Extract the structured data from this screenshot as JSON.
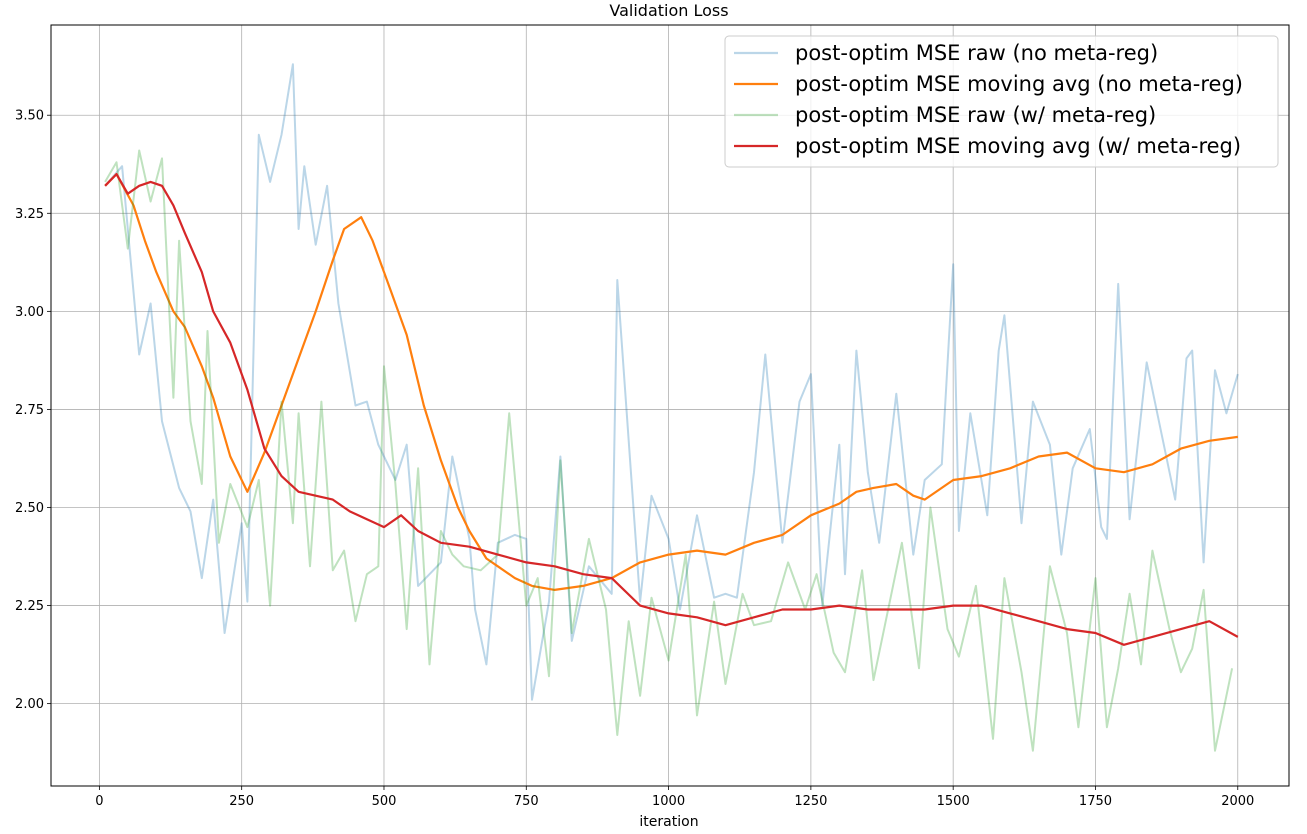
{
  "chart_data": {
    "type": "line",
    "title": "Validation Loss",
    "xlabel": "iteration",
    "ylabel": "",
    "xlim": [
      -85,
      2090
    ],
    "ylim": [
      1.79,
      3.73
    ],
    "xticks": [
      0,
      250,
      500,
      750,
      1000,
      1250,
      1500,
      1750,
      2000
    ],
    "xtick_labels": [
      "0",
      "250",
      "500",
      "750",
      "1000",
      "1250",
      "1500",
      "1750",
      "2000"
    ],
    "yticks": [
      2.0,
      2.25,
      2.5,
      2.75,
      3.0,
      3.25,
      3.5
    ],
    "ytick_labels": [
      "2.00",
      "2.25",
      "2.50",
      "2.75",
      "3.00",
      "3.25",
      "3.50"
    ],
    "grid": true,
    "legend_position": "top-right",
    "series": [
      {
        "name": "post-optim MSE raw (no meta-reg)",
        "color": "#1f77b4",
        "opacity": 0.3,
        "x": [
          10,
          40,
          70,
          90,
          110,
          140,
          160,
          180,
          200,
          220,
          250,
          260,
          280,
          300,
          320,
          340,
          350,
          360,
          380,
          400,
          420,
          450,
          470,
          490,
          520,
          540,
          560,
          600,
          620,
          650,
          660,
          680,
          700,
          730,
          750,
          760,
          790,
          810,
          830,
          860,
          900,
          910,
          950,
          970,
          1000,
          1020,
          1050,
          1080,
          1100,
          1120,
          1150,
          1170,
          1200,
          1230,
          1250,
          1270,
          1300,
          1310,
          1330,
          1350,
          1370,
          1400,
          1430,
          1450,
          1480,
          1500,
          1510,
          1530,
          1560,
          1580,
          1590,
          1620,
          1640,
          1670,
          1690,
          1710,
          1740,
          1760,
          1770,
          1790,
          1810,
          1840,
          1860,
          1870,
          1890,
          1910,
          1920,
          1940,
          1960,
          1980,
          2000
        ],
        "y": [
          3.32,
          3.37,
          2.89,
          3.02,
          2.72,
          2.55,
          2.49,
          2.32,
          2.52,
          2.18,
          2.46,
          2.26,
          3.45,
          3.33,
          3.45,
          3.63,
          3.21,
          3.37,
          3.17,
          3.32,
          3.02,
          2.76,
          2.77,
          2.66,
          2.57,
          2.66,
          2.3,
          2.36,
          2.63,
          2.42,
          2.24,
          2.1,
          2.41,
          2.43,
          2.42,
          2.01,
          2.26,
          2.63,
          2.16,
          2.35,
          2.28,
          3.08,
          2.26,
          2.53,
          2.42,
          2.24,
          2.48,
          2.27,
          2.28,
          2.27,
          2.59,
          2.89,
          2.41,
          2.77,
          2.84,
          2.25,
          2.66,
          2.33,
          2.9,
          2.59,
          2.41,
          2.79,
          2.38,
          2.57,
          2.61,
          3.12,
          2.44,
          2.74,
          2.48,
          2.9,
          2.99,
          2.46,
          2.77,
          2.66,
          2.38,
          2.6,
          2.7,
          2.45,
          2.42,
          3.07,
          2.47,
          2.87,
          2.73,
          2.66,
          2.52,
          2.88,
          2.9,
          2.36,
          2.85,
          2.74,
          2.84
        ]
      },
      {
        "name": "post-optim MSE moving avg (no meta-reg)",
        "color": "#ff7f0e",
        "opacity": 1,
        "x": [
          10,
          30,
          60,
          80,
          100,
          130,
          150,
          180,
          200,
          230,
          260,
          290,
          320,
          350,
          380,
          410,
          430,
          460,
          480,
          510,
          540,
          570,
          600,
          630,
          650,
          680,
          700,
          730,
          760,
          800,
          850,
          900,
          950,
          1000,
          1050,
          1100,
          1150,
          1200,
          1250,
          1300,
          1330,
          1360,
          1400,
          1430,
          1450,
          1500,
          1550,
          1600,
          1650,
          1700,
          1750,
          1800,
          1850,
          1900,
          1950,
          2000
        ],
        "y": [
          3.32,
          3.35,
          3.27,
          3.18,
          3.1,
          3.0,
          2.96,
          2.86,
          2.78,
          2.63,
          2.54,
          2.64,
          2.76,
          2.88,
          3.0,
          3.13,
          3.21,
          3.24,
          3.18,
          3.06,
          2.94,
          2.76,
          2.62,
          2.5,
          2.44,
          2.37,
          2.35,
          2.32,
          2.3,
          2.29,
          2.3,
          2.32,
          2.36,
          2.38,
          2.39,
          2.38,
          2.41,
          2.43,
          2.48,
          2.51,
          2.54,
          2.55,
          2.56,
          2.53,
          2.52,
          2.57,
          2.58,
          2.6,
          2.63,
          2.64,
          2.6,
          2.59,
          2.61,
          2.65,
          2.67,
          2.68
        ]
      },
      {
        "name": "post-optim MSE raw (w/ meta-reg)",
        "color": "#2ca02c",
        "opacity": 0.3,
        "x": [
          10,
          30,
          50,
          70,
          90,
          110,
          130,
          140,
          160,
          180,
          190,
          210,
          230,
          260,
          280,
          300,
          320,
          340,
          350,
          370,
          390,
          410,
          430,
          450,
          470,
          490,
          500,
          520,
          540,
          560,
          580,
          600,
          620,
          640,
          670,
          700,
          720,
          750,
          770,
          790,
          810,
          830,
          860,
          890,
          910,
          930,
          950,
          970,
          1000,
          1030,
          1050,
          1080,
          1100,
          1130,
          1150,
          1180,
          1210,
          1240,
          1260,
          1290,
          1310,
          1340,
          1360,
          1390,
          1410,
          1440,
          1460,
          1490,
          1510,
          1540,
          1570,
          1590,
          1620,
          1640,
          1670,
          1700,
          1720,
          1750,
          1770,
          1790,
          1810,
          1830,
          1850,
          1880,
          1900,
          1920,
          1940,
          1960,
          1990
        ],
        "y": [
          3.33,
          3.38,
          3.16,
          3.41,
          3.28,
          3.39,
          2.78,
          3.18,
          2.72,
          2.56,
          2.95,
          2.41,
          2.56,
          2.45,
          2.57,
          2.25,
          2.77,
          2.46,
          2.74,
          2.35,
          2.77,
          2.34,
          2.39,
          2.21,
          2.33,
          2.35,
          2.86,
          2.56,
          2.19,
          2.6,
          2.1,
          2.44,
          2.38,
          2.35,
          2.34,
          2.38,
          2.74,
          2.25,
          2.32,
          2.07,
          2.62,
          2.18,
          2.42,
          2.24,
          1.92,
          2.21,
          2.02,
          2.27,
          2.11,
          2.38,
          1.97,
          2.26,
          2.05,
          2.28,
          2.2,
          2.21,
          2.36,
          2.24,
          2.33,
          2.13,
          2.08,
          2.34,
          2.06,
          2.27,
          2.41,
          2.09,
          2.5,
          2.19,
          2.12,
          2.3,
          1.91,
          2.32,
          2.08,
          1.88,
          2.35,
          2.18,
          1.94,
          2.32,
          1.94,
          2.09,
          2.28,
          2.1,
          2.39,
          2.19,
          2.08,
          2.14,
          2.29,
          1.88,
          2.09
        ]
      },
      {
        "name": "post-optim MSE moving avg (w/ meta-reg)",
        "color": "#d62728",
        "opacity": 1,
        "x": [
          10,
          30,
          50,
          70,
          90,
          110,
          130,
          150,
          180,
          200,
          230,
          260,
          290,
          320,
          350,
          380,
          410,
          440,
          470,
          500,
          530,
          560,
          600,
          650,
          700,
          750,
          800,
          850,
          900,
          950,
          1000,
          1050,
          1100,
          1150,
          1200,
          1250,
          1300,
          1350,
          1400,
          1450,
          1500,
          1550,
          1600,
          1650,
          1700,
          1750,
          1800,
          1850,
          1900,
          1950,
          2000
        ],
        "y": [
          3.32,
          3.35,
          3.3,
          3.32,
          3.33,
          3.32,
          3.27,
          3.2,
          3.1,
          3.0,
          2.92,
          2.8,
          2.65,
          2.58,
          2.54,
          2.53,
          2.52,
          2.49,
          2.47,
          2.45,
          2.48,
          2.44,
          2.41,
          2.4,
          2.38,
          2.36,
          2.35,
          2.33,
          2.32,
          2.25,
          2.23,
          2.22,
          2.2,
          2.22,
          2.24,
          2.24,
          2.25,
          2.24,
          2.24,
          2.24,
          2.25,
          2.25,
          2.23,
          2.21,
          2.19,
          2.18,
          2.15,
          2.17,
          2.19,
          2.21,
          2.17
        ]
      }
    ]
  }
}
